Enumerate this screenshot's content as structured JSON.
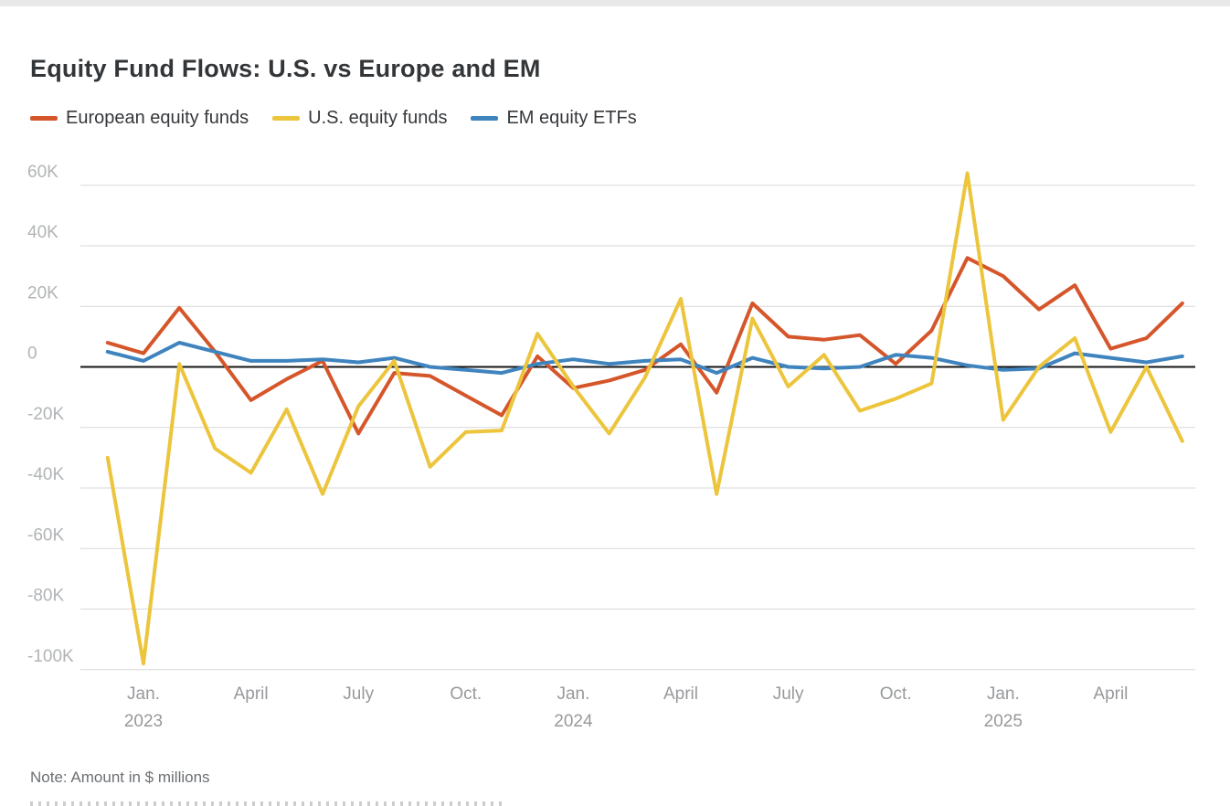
{
  "page": {
    "title": "Equity Fund Flows: U.S. vs Europe and EM",
    "note": "Note: Amount in $ millions"
  },
  "legend": [
    {
      "label": "European equity funds",
      "color": "#d5562b"
    },
    {
      "label": "U.S. equity funds",
      "color": "#ecc53d"
    },
    {
      "label": "EM equity ETFs",
      "color": "#3f84be"
    }
  ],
  "chart_data": {
    "type": "line",
    "title": "Equity Fund Flows: U.S. vs Europe and EM",
    "note": "Note: Amount in $ millions",
    "values_unit": "axis in K, amounts in $ millions",
    "grid": true,
    "legend_position": "top",
    "ylim": [
      -110,
      70
    ],
    "x": [
      "Dec. 2022",
      "Jan. 2023",
      "Feb. 2023",
      "March 2023",
      "April 2023",
      "May 2023",
      "June 2023",
      "July 2023",
      "Aug. 2023",
      "Sept. 2023",
      "Oct. 2023",
      "Nov. 2023",
      "Dec. 2023",
      "Jan. 2024",
      "Feb. 2024",
      "March 2024",
      "April 2024",
      "May 2024",
      "June 2024",
      "July 2024",
      "Aug. 2024",
      "Sept. 2024",
      "Oct. 2024",
      "Nov. 2024",
      "Dec. 2024",
      "Jan. 2025",
      "Feb. 2025",
      "March 2025",
      "April 2025",
      "May 2025",
      "June 2025"
    ],
    "series": [
      {
        "name": "European equity funds",
        "color": "#d5562b",
        "values": [
          8,
          4.5,
          19.5,
          5,
          -11,
          -4,
          2,
          -22,
          -2,
          -3,
          -9.5,
          -16,
          3.5,
          -7,
          -4.5,
          -1,
          7.5,
          -8.5,
          21,
          10,
          9,
          10.5,
          1,
          12,
          36,
          30,
          19,
          27,
          6,
          9.5,
          21
        ]
      },
      {
        "name": "U.S. equity funds",
        "color": "#ecc53d",
        "values": [
          -30,
          -98,
          1,
          -27,
          -35,
          -14,
          -42,
          -13,
          2,
          -33,
          -21.5,
          -21,
          11,
          -6.5,
          -22,
          -3.5,
          22.5,
          -42,
          16,
          -6.5,
          4,
          -14.5,
          -10.5,
          -5.5,
          64,
          -17.5,
          0,
          9.5,
          -21.5,
          0,
          -24.5
        ]
      },
      {
        "name": "EM equity ETFs",
        "color": "#3f84be",
        "values": [
          5,
          2,
          8,
          5,
          2,
          2,
          2.5,
          1.5,
          3,
          0,
          -1,
          -2,
          1,
          2.5,
          1,
          2,
          2.5,
          -2,
          3,
          0,
          -0.5,
          0,
          4,
          3,
          0.5,
          -1,
          -0.5,
          4.5,
          3,
          1.5,
          3.5
        ]
      }
    ],
    "draw_order": [
      0,
      2,
      1
    ],
    "yticks": [
      {
        "v": 60,
        "label": "60K"
      },
      {
        "v": 40,
        "label": "40K"
      },
      {
        "v": 20,
        "label": "20K"
      },
      {
        "v": 0,
        "label": "0"
      },
      {
        "v": -20,
        "label": "-20K"
      },
      {
        "v": -40,
        "label": "-40K"
      },
      {
        "v": -60,
        "label": "-60K"
      },
      {
        "v": -80,
        "label": "-80K"
      },
      {
        "v": -100,
        "label": "-100K"
      }
    ],
    "xticks": [
      {
        "i": 1,
        "label": "Jan.",
        "year": "2023"
      },
      {
        "i": 4,
        "label": "April"
      },
      {
        "i": 7,
        "label": "July"
      },
      {
        "i": 10,
        "label": "Oct."
      },
      {
        "i": 13,
        "label": "Jan.",
        "year": "2024"
      },
      {
        "i": 16,
        "label": "April"
      },
      {
        "i": 19,
        "label": "July"
      },
      {
        "i": 22,
        "label": "Oct."
      },
      {
        "i": 25,
        "label": "Jan.",
        "year": "2025"
      },
      {
        "i": 28,
        "label": "April"
      }
    ]
  },
  "colors": {
    "gridline": "#d7d7d7",
    "zero_line": "#141414",
    "ytick_text": "#b1b4b6",
    "xtick_text": "#97999c"
  }
}
